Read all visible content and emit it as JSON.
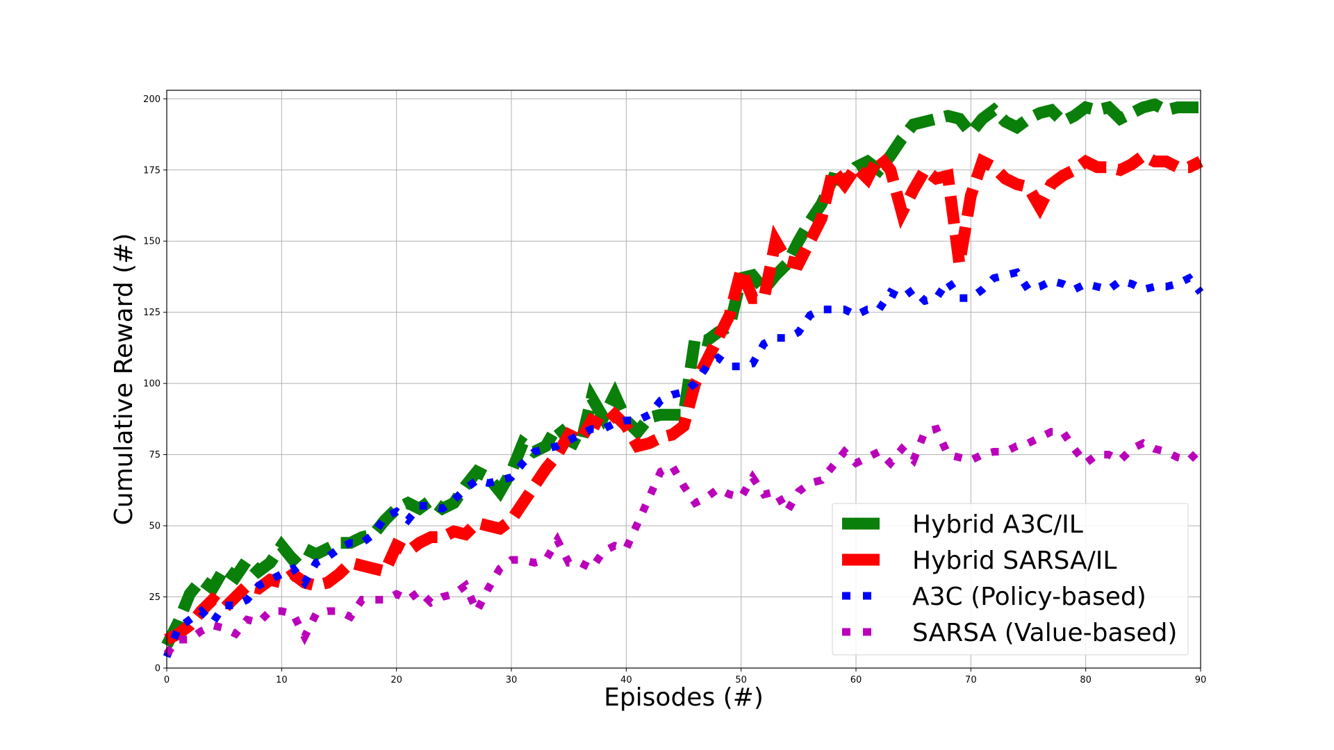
{
  "chart_data": {
    "type": "line",
    "xlabel": "Episodes (#)",
    "ylabel": "Cumulative Reward (#)",
    "xlim": [
      0,
      90
    ],
    "ylim": [
      0,
      203
    ],
    "xticks": [
      0,
      10,
      20,
      30,
      40,
      50,
      60,
      70,
      80,
      90
    ],
    "yticks": [
      0,
      25,
      50,
      75,
      100,
      125,
      150,
      175,
      200
    ],
    "grid": true,
    "legend_position": "bottom-right",
    "series": [
      {
        "name": "Hybrid A3C/IL",
        "color": "#0a7f0a",
        "style": "dashed",
        "x": [
          0,
          1,
          2,
          3,
          4,
          5,
          6,
          7,
          8,
          9,
          10,
          11,
          12,
          13,
          14,
          15,
          16,
          17,
          18,
          19,
          20,
          21,
          22,
          23,
          24,
          25,
          26,
          27,
          28,
          29,
          30,
          31,
          32,
          33,
          34,
          35,
          36,
          37,
          38,
          39,
          40,
          41,
          42,
          43,
          44,
          45,
          46,
          47,
          48,
          49,
          50,
          51,
          52,
          53,
          54,
          55,
          56,
          57,
          58,
          59,
          60,
          61,
          62,
          63,
          64,
          65,
          66,
          67,
          68,
          69,
          70,
          71,
          72,
          73,
          74,
          75,
          76,
          77,
          78,
          79,
          80,
          81,
          82,
          83,
          84,
          85,
          86,
          87,
          88,
          89,
          90
        ],
        "values": [
          8,
          16,
          26,
          31,
          28,
          35,
          32,
          38,
          34,
          37,
          43,
          38,
          42,
          40,
          42,
          44,
          44,
          46,
          47,
          52,
          56,
          58,
          56,
          59,
          56,
          58,
          64,
          69,
          67,
          62,
          69,
          79,
          76,
          78,
          85,
          80,
          78,
          95,
          88,
          96,
          87,
          83,
          88,
          89,
          89,
          89,
          116,
          115,
          118,
          120,
          137,
          138,
          133,
          138,
          142,
          150,
          157,
          163,
          172,
          171,
          176,
          178,
          175,
          180,
          186,
          191,
          192,
          193,
          194,
          193,
          188,
          193,
          196,
          192,
          190,
          193,
          195,
          196,
          192,
          194,
          197,
          196,
          197,
          193,
          195,
          197,
          198,
          196,
          197,
          197,
          197
        ]
      },
      {
        "name": "Hybrid SARSA/IL",
        "color": "#ff0000",
        "style": "dashed",
        "x": [
          0,
          1,
          2,
          3,
          4,
          5,
          6,
          7,
          8,
          9,
          10,
          11,
          12,
          13,
          14,
          15,
          16,
          17,
          18,
          19,
          20,
          21,
          22,
          23,
          24,
          25,
          26,
          27,
          28,
          29,
          30,
          31,
          32,
          33,
          34,
          35,
          36,
          37,
          38,
          39,
          40,
          41,
          42,
          43,
          44,
          45,
          46,
          47,
          48,
          49,
          50,
          51,
          52,
          53,
          54,
          55,
          56,
          57,
          58,
          59,
          60,
          61,
          62,
          63,
          64,
          65,
          66,
          67,
          68,
          69,
          70,
          71,
          72,
          73,
          74,
          75,
          76,
          77,
          78,
          79,
          80,
          81,
          82,
          83,
          84,
          85,
          86,
          87,
          88,
          89,
          90
        ],
        "values": [
          10,
          12,
          15,
          20,
          24,
          21,
          25,
          29,
          28,
          31,
          30,
          33,
          30,
          29,
          30,
          33,
          37,
          36,
          35,
          34,
          43,
          41,
          44,
          46,
          46,
          48,
          47,
          51,
          50,
          49,
          52,
          58,
          64,
          70,
          75,
          82,
          80,
          87,
          85,
          89,
          85,
          78,
          79,
          81,
          82,
          85,
          100,
          108,
          116,
          124,
          140,
          130,
          130,
          150,
          143,
          142,
          150,
          158,
          175,
          170,
          176,
          172,
          180,
          175,
          160,
          168,
          175,
          172,
          173,
          142,
          166,
          178,
          176,
          172,
          170,
          169,
          162,
          170,
          173,
          175,
          178,
          176,
          176,
          175,
          177,
          180,
          178,
          178,
          176,
          176,
          178
        ]
      },
      {
        "name": "A3C (Policy-based)",
        "color": "#0000ff",
        "style": "dotted",
        "x": [
          0,
          1,
          2,
          3,
          4,
          5,
          6,
          7,
          8,
          9,
          10,
          11,
          12,
          13,
          14,
          15,
          16,
          17,
          18,
          19,
          20,
          21,
          22,
          23,
          24,
          25,
          26,
          27,
          28,
          29,
          30,
          31,
          32,
          33,
          34,
          35,
          36,
          37,
          38,
          39,
          40,
          41,
          42,
          43,
          44,
          45,
          46,
          47,
          48,
          49,
          50,
          51,
          52,
          53,
          54,
          55,
          56,
          57,
          58,
          59,
          60,
          61,
          62,
          63,
          64,
          65,
          66,
          67,
          68,
          69,
          70,
          71,
          72,
          73,
          74,
          75,
          76,
          77,
          78,
          79,
          80,
          81,
          82,
          83,
          84,
          85,
          86,
          87,
          88,
          89,
          90
        ],
        "values": [
          4,
          14,
          17,
          20,
          16,
          22,
          22,
          24,
          29,
          31,
          33,
          35,
          30,
          37,
          39,
          42,
          44,
          44,
          47,
          53,
          55,
          52,
          57,
          57,
          56,
          59,
          63,
          66,
          65,
          66,
          67,
          72,
          76,
          77,
          78,
          80,
          82,
          84,
          84,
          86,
          87,
          87,
          89,
          94,
          96,
          97,
          100,
          106,
          109,
          106,
          106,
          107,
          114,
          116,
          116,
          118,
          124,
          126,
          126,
          126,
          124,
          126,
          126,
          132,
          130,
          133,
          129,
          130,
          136,
          130,
          130,
          133,
          137,
          138,
          139,
          133,
          134,
          136,
          135,
          133,
          135,
          134,
          133,
          136,
          135,
          133,
          134,
          134,
          135,
          137,
          132
        ]
      },
      {
        "name": "SARSA (Value-based)",
        "color": "#bb00bb",
        "style": "dotted",
        "x": [
          0,
          1,
          2,
          3,
          4,
          5,
          6,
          7,
          8,
          9,
          10,
          11,
          12,
          13,
          14,
          15,
          16,
          17,
          18,
          19,
          20,
          21,
          22,
          23,
          24,
          25,
          26,
          27,
          28,
          29,
          30,
          31,
          32,
          33,
          34,
          35,
          36,
          37,
          38,
          39,
          40,
          41,
          42,
          43,
          44,
          45,
          46,
          47,
          48,
          49,
          50,
          51,
          52,
          53,
          54,
          55,
          56,
          57,
          58,
          59,
          60,
          61,
          62,
          63,
          64,
          65,
          66,
          67,
          68,
          69,
          70,
          71,
          72,
          73,
          74,
          75,
          76,
          77,
          78,
          79,
          80,
          81,
          82,
          83,
          84,
          85,
          86,
          87,
          88,
          89,
          90
        ],
        "values": [
          5,
          10,
          10,
          13,
          15,
          14,
          12,
          17,
          16,
          20,
          20,
          19,
          11,
          19,
          20,
          20,
          18,
          24,
          24,
          24,
          26,
          24,
          27,
          23,
          25,
          26,
          29,
          20,
          28,
          35,
          38,
          38,
          37,
          38,
          45,
          37,
          37,
          35,
          41,
          43,
          42,
          51,
          60,
          69,
          71,
          64,
          58,
          60,
          63,
          61,
          60,
          67,
          61,
          62,
          55,
          62,
          65,
          66,
          71,
          76,
          72,
          74,
          76,
          72,
          77,
          73,
          83,
          84,
          75,
          74,
          73,
          75,
          76,
          76,
          78,
          79,
          81,
          83,
          83,
          77,
          72,
          75,
          75,
          73,
          77,
          79,
          77,
          76,
          74,
          73,
          77
        ]
      }
    ]
  }
}
